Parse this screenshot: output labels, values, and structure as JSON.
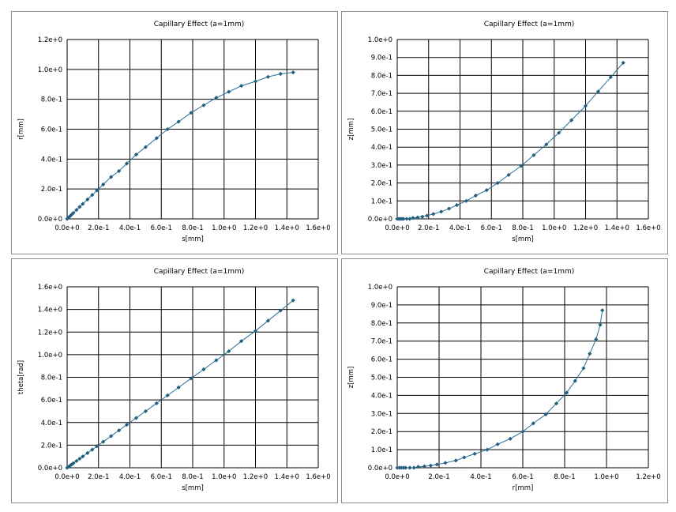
{
  "colors": {
    "series": "#2b6f96",
    "marker": "#23607f",
    "grid": "#000000",
    "border": "#8c8c8c"
  },
  "chart_data": [
    {
      "type": "scatter",
      "title": "Capillary Effect (a=1mm)",
      "xlabel": "s[mm]",
      "ylabel": "r[mm]",
      "xlim": [
        0,
        1.6
      ],
      "ylim": [
        0,
        1.2
      ],
      "xticks": [
        "0.0e+0",
        "2.0e-1",
        "4.0e-1",
        "6.0e-1",
        "8.0e-1",
        "1.0e+0",
        "1.2e+0",
        "1.4e+0",
        "1.6e+0"
      ],
      "yticks": [
        "0.0e+0",
        "2.0e-1",
        "4.0e-1",
        "6.0e-1",
        "8.0e-1",
        "1.0e+0",
        "1.2e+0"
      ],
      "grid": true,
      "series": [
        {
          "x": [
            0.0,
            0.01,
            0.02,
            0.03,
            0.04,
            0.06,
            0.08,
            0.1,
            0.13,
            0.16,
            0.19,
            0.23,
            0.28,
            0.33,
            0.38,
            0.44,
            0.5,
            0.57,
            0.64,
            0.71,
            0.79,
            0.87,
            0.95,
            1.03,
            1.11,
            1.2,
            1.28,
            1.36,
            1.44
          ],
          "y": [
            0.0,
            0.01,
            0.02,
            0.03,
            0.04,
            0.06,
            0.08,
            0.1,
            0.13,
            0.16,
            0.19,
            0.23,
            0.28,
            0.32,
            0.37,
            0.43,
            0.48,
            0.54,
            0.6,
            0.65,
            0.71,
            0.76,
            0.81,
            0.85,
            0.89,
            0.92,
            0.95,
            0.97,
            0.98
          ]
        }
      ]
    },
    {
      "type": "scatter",
      "title": "Capillary Effect (a=1mm)",
      "xlabel": "s[mm]",
      "ylabel": "z[mm]",
      "xlim": [
        0,
        1.6
      ],
      "ylim": [
        0,
        1.0
      ],
      "xticks": [
        "0.0e+0",
        "2.0e-1",
        "4.0e-1",
        "6.0e-1",
        "8.0e-1",
        "1.0e+0",
        "1.2e+0",
        "1.4e+0",
        "1.6e+0"
      ],
      "yticks": [
        "0.0e+0",
        "1.0e-1",
        "2.0e-1",
        "3.0e-1",
        "4.0e-1",
        "5.0e-1",
        "6.0e-1",
        "7.0e-1",
        "8.0e-1",
        "9.0e-1",
        "1.0e+0"
      ],
      "grid": true,
      "series": [
        {
          "x": [
            0.0,
            0.01,
            0.02,
            0.03,
            0.04,
            0.06,
            0.08,
            0.1,
            0.13,
            0.16,
            0.19,
            0.23,
            0.28,
            0.33,
            0.38,
            0.44,
            0.5,
            0.57,
            0.64,
            0.71,
            0.79,
            0.87,
            0.95,
            1.03,
            1.11,
            1.2,
            1.28,
            1.36,
            1.44
          ],
          "y": [
            0.0,
            0.0,
            0.0,
            0.0,
            0.0,
            0.0,
            0.0,
            0.005,
            0.008,
            0.012,
            0.018,
            0.027,
            0.04,
            0.057,
            0.077,
            0.1,
            0.13,
            0.16,
            0.2,
            0.245,
            0.295,
            0.355,
            0.415,
            0.48,
            0.55,
            0.63,
            0.71,
            0.79,
            0.87
          ]
        }
      ]
    },
    {
      "type": "scatter",
      "title": "Capillary Effect (a=1mm)",
      "xlabel": "s[mm]",
      "ylabel": "theta[rad]",
      "xlim": [
        0,
        1.6
      ],
      "ylim": [
        0,
        1.6
      ],
      "xticks": [
        "0.0e+0",
        "2.0e-1",
        "4.0e-1",
        "6.0e-1",
        "8.0e-1",
        "1.0e+0",
        "1.2e+0",
        "1.4e+0",
        "1.6e+0"
      ],
      "yticks": [
        "0.0e+0",
        "2.0e-1",
        "4.0e-1",
        "6.0e-1",
        "8.0e-1",
        "1.0e+0",
        "1.2e+0",
        "1.4e+0",
        "1.6e+0"
      ],
      "grid": true,
      "series": [
        {
          "x": [
            0.0,
            0.01,
            0.02,
            0.03,
            0.04,
            0.06,
            0.08,
            0.1,
            0.13,
            0.16,
            0.19,
            0.23,
            0.28,
            0.33,
            0.38,
            0.44,
            0.5,
            0.57,
            0.64,
            0.71,
            0.79,
            0.87,
            0.95,
            1.03,
            1.11,
            1.2,
            1.28,
            1.36,
            1.44
          ],
          "y": [
            0.0,
            0.01,
            0.02,
            0.03,
            0.04,
            0.06,
            0.08,
            0.1,
            0.13,
            0.16,
            0.19,
            0.23,
            0.28,
            0.33,
            0.38,
            0.44,
            0.5,
            0.57,
            0.64,
            0.71,
            0.79,
            0.87,
            0.95,
            1.03,
            1.12,
            1.21,
            1.3,
            1.39,
            1.48
          ]
        }
      ]
    },
    {
      "type": "scatter",
      "title": "Capillary Effect (a=1mm)",
      "xlabel": "r[mm]",
      "ylabel": "z[mm]",
      "xlim": [
        0,
        1.2
      ],
      "ylim": [
        0,
        1.0
      ],
      "xticks": [
        "0.0e+0",
        "2.0e-1",
        "4.0e-1",
        "6.0e-1",
        "8.0e-1",
        "1.0e+0",
        "1.2e+0"
      ],
      "yticks": [
        "0.0e+0",
        "1.0e-1",
        "2.0e-1",
        "3.0e-1",
        "4.0e-1",
        "5.0e-1",
        "6.0e-1",
        "7.0e-1",
        "8.0e-1",
        "9.0e-1",
        "1.0e+0"
      ],
      "grid": true,
      "series": [
        {
          "x": [
            0.0,
            0.01,
            0.02,
            0.03,
            0.04,
            0.06,
            0.08,
            0.1,
            0.13,
            0.16,
            0.19,
            0.23,
            0.28,
            0.32,
            0.37,
            0.43,
            0.48,
            0.54,
            0.6,
            0.65,
            0.71,
            0.76,
            0.81,
            0.85,
            0.89,
            0.92,
            0.95,
            0.97,
            0.98
          ],
          "y": [
            0.0,
            0.0,
            0.0,
            0.0,
            0.0,
            0.0,
            0.0,
            0.005,
            0.008,
            0.012,
            0.018,
            0.027,
            0.04,
            0.057,
            0.077,
            0.1,
            0.13,
            0.16,
            0.2,
            0.245,
            0.295,
            0.355,
            0.415,
            0.48,
            0.55,
            0.63,
            0.71,
            0.79,
            0.87
          ]
        }
      ]
    }
  ]
}
